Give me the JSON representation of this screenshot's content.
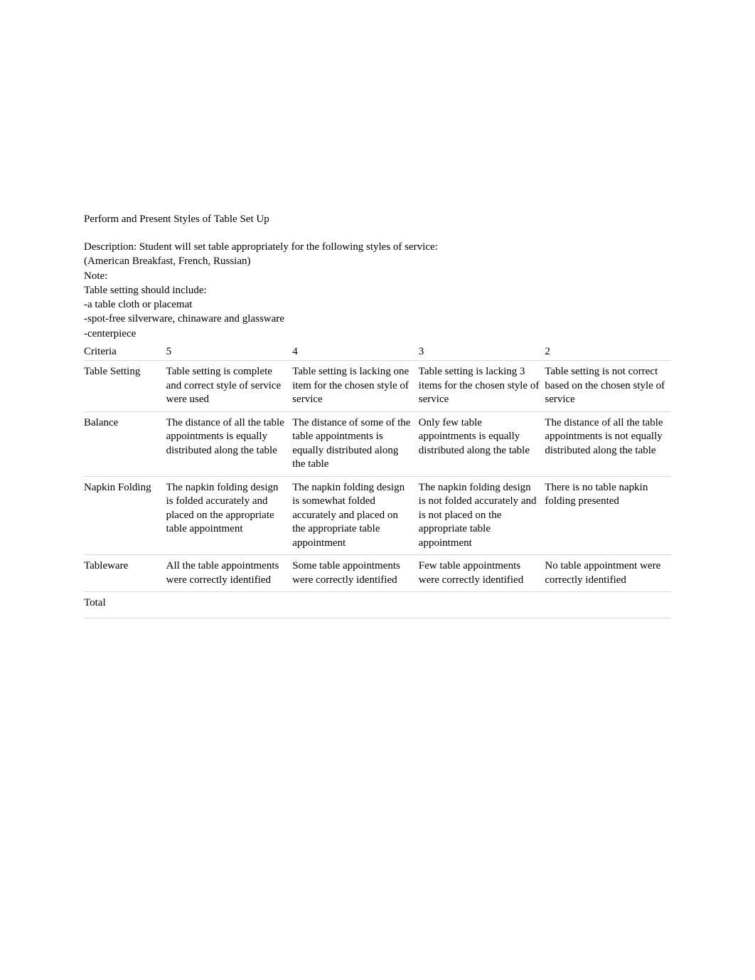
{
  "title": "Perform and Present Styles of Table Set Up",
  "description": {
    "line1": "Description: Student will set table appropriately for the following styles of service:",
    "line2": "(American Breakfast, French, Russian)",
    "line3": "Note:",
    "line4": "Table setting should include:",
    "line5": "-a table cloth or placemat",
    "line6": "-spot-free silverware, chinaware and glassware",
    "line7": "-centerpiece"
  },
  "table": {
    "headers": {
      "criteria": "Criteria",
      "col5": "5",
      "col4": "4",
      "col3": "3",
      "col2": "2"
    },
    "rows": [
      {
        "criteria": "Table Setting",
        "score5": "Table setting is complete and correct style of service were used",
        "score4": "Table setting is lacking one item for the chosen style of service",
        "score3": "Table setting is lacking 3 items for the chosen style of service",
        "score2": "Table setting is not correct based on the chosen style of service"
      },
      {
        "criteria": "Balance",
        "score5": "The distance of all the table appointments is equally distributed along the table",
        "score4": "The distance of some of the table appointments is equally distributed along the table",
        "score3": "Only few table appointments is equally distributed along the table",
        "score2": "The distance of all the table appointments is not equally distributed along the table"
      },
      {
        "criteria": "Napkin Folding",
        "score5": "The napkin folding design is folded accurately and placed on the appropriate table appointment",
        "score4": "The napkin folding design is somewhat folded accurately and placed on the appropriate table appointment",
        "score3": "The napkin folding design is not folded accurately and is not placed on the appropriate table appointment",
        "score2": "There is no table napkin folding presented"
      },
      {
        "criteria": "Tableware",
        "score5": "All the table appointments were correctly identified",
        "score4": "Some table appointments were correctly identified",
        "score3": "Few table appointments were correctly identified",
        "score2": "No table appointment were correctly identified"
      }
    ],
    "total_label": "Total"
  },
  "styling": {
    "background_color": "#ffffff",
    "text_color": "#000000",
    "border_color": "#d8d8d8",
    "font_family": "Times New Roman",
    "font_size": 15
  }
}
